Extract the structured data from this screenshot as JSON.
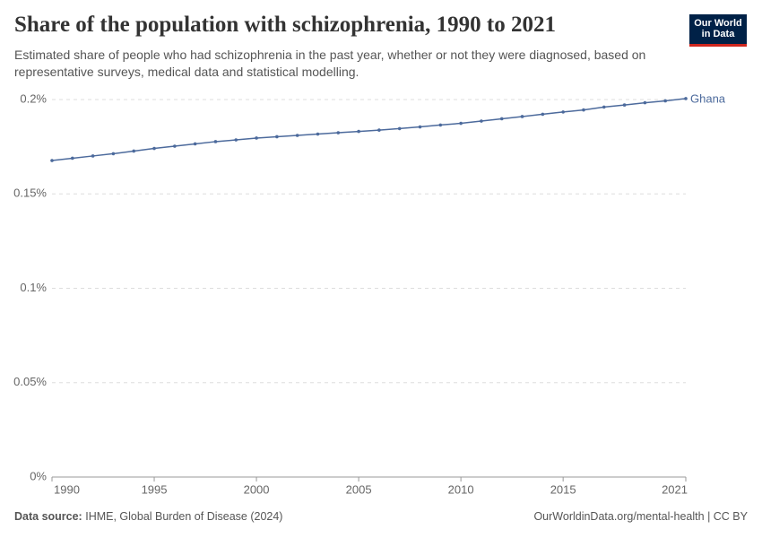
{
  "chart_data": {
    "type": "line",
    "title": "Share of the population with schizophrenia, 1990 to 2021",
    "subtitle": "Estimated share of people who had schizophrenia in the past year, whether or not they were diagnosed, based on representative surveys, medical data and statistical modelling.",
    "logo": [
      "Our World",
      "in Data"
    ],
    "x": [
      1990,
      1991,
      1992,
      1993,
      1994,
      1995,
      1996,
      1997,
      1998,
      1999,
      2000,
      2001,
      2002,
      2003,
      2004,
      2005,
      2006,
      2007,
      2008,
      2009,
      2010,
      2011,
      2012,
      2013,
      2014,
      2015,
      2016,
      2017,
      2018,
      2019,
      2020,
      2021
    ],
    "series": [
      {
        "name": "Ghana",
        "color": "#4c6a9c",
        "values": [
          0.1677,
          0.1689,
          0.1701,
          0.1713,
          0.1727,
          0.1741,
          0.1753,
          0.1765,
          0.1777,
          0.1786,
          0.1796,
          0.1803,
          0.181,
          0.1817,
          0.1824,
          0.1831,
          0.1838,
          0.1846,
          0.1855,
          0.1865,
          0.1874,
          0.1886,
          0.1898,
          0.191,
          0.1922,
          0.1934,
          0.1945,
          0.196,
          0.1971,
          0.1983,
          0.1993,
          0.2005
        ]
      }
    ],
    "xlim": [
      1990,
      2021
    ],
    "xticks": [
      1990,
      1995,
      2000,
      2005,
      2010,
      2015,
      2021
    ],
    "ylim": [
      0,
      0.2
    ],
    "yticks": [
      {
        "value": 0,
        "label": "0%"
      },
      {
        "value": 0.05,
        "label": "0.05%"
      },
      {
        "value": 0.1,
        "label": "0.1%"
      },
      {
        "value": 0.15,
        "label": "0.15%"
      },
      {
        "value": 0.2,
        "label": "0.2%"
      }
    ],
    "grid": true,
    "source_label": "Data source:",
    "source": "IHME, Global Burden of Disease (2024)",
    "footer_right": "OurWorldinData.org/mental-health | CC BY"
  }
}
